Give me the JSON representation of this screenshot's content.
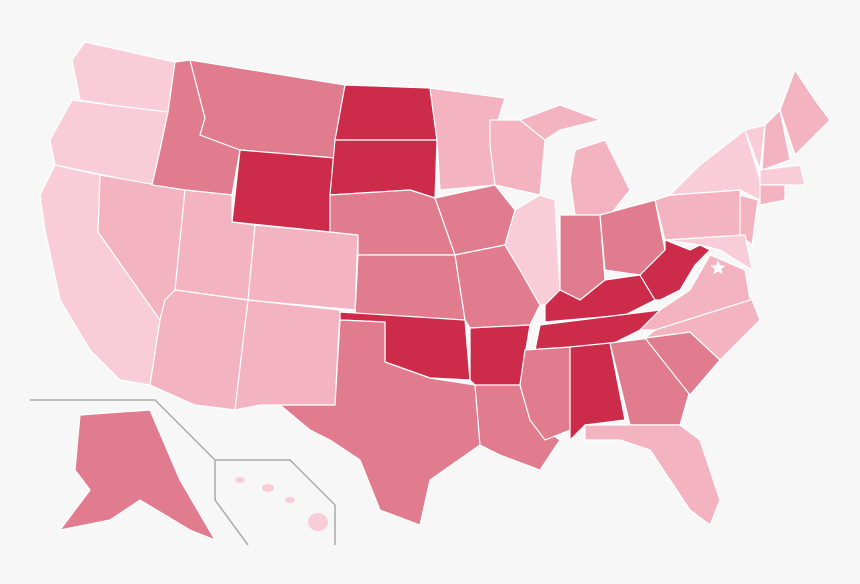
{
  "map": {
    "background": "#f7f7f7",
    "border_color": "#ffffff",
    "inset_line_color": "#aaaaaa",
    "capital_marker": "star-icon",
    "shade_colors": {
      "lightest": "#f9cdd7",
      "light": "#f4b3c1",
      "medium": "#e07c8e",
      "dark": "#cc2c4a"
    },
    "states": {
      "WA": "lightest",
      "OR": "lightest",
      "CA": "lightest",
      "NV": "light",
      "ID": "medium",
      "MT": "medium",
      "WY": "dark",
      "UT": "light",
      "CO": "light",
      "AZ": "light",
      "NM": "light",
      "ND": "dark",
      "SD": "dark",
      "NE": "medium",
      "KS": "medium",
      "OK": "dark",
      "TX": "medium",
      "MN": "light",
      "IA": "medium",
      "MO": "medium",
      "AR": "dark",
      "LA": "medium",
      "WI": "light",
      "IL": "lightest",
      "MI": "light",
      "MI_UP": "light",
      "IN": "medium",
      "OH": "medium",
      "KY": "dark",
      "TN": "dark",
      "MS": "medium",
      "AL": "dark",
      "GA": "medium",
      "FL": "light",
      "SC": "medium",
      "NC": "light",
      "VA": "light",
      "WV": "dark",
      "PA": "light",
      "NY": "lightest",
      "NJ": "light",
      "MD": "lightest",
      "VT": "lightest",
      "NH": "light",
      "ME": "light",
      "MA": "lightest",
      "CT": "light",
      "AK": "medium",
      "HI": "lightest"
    }
  }
}
